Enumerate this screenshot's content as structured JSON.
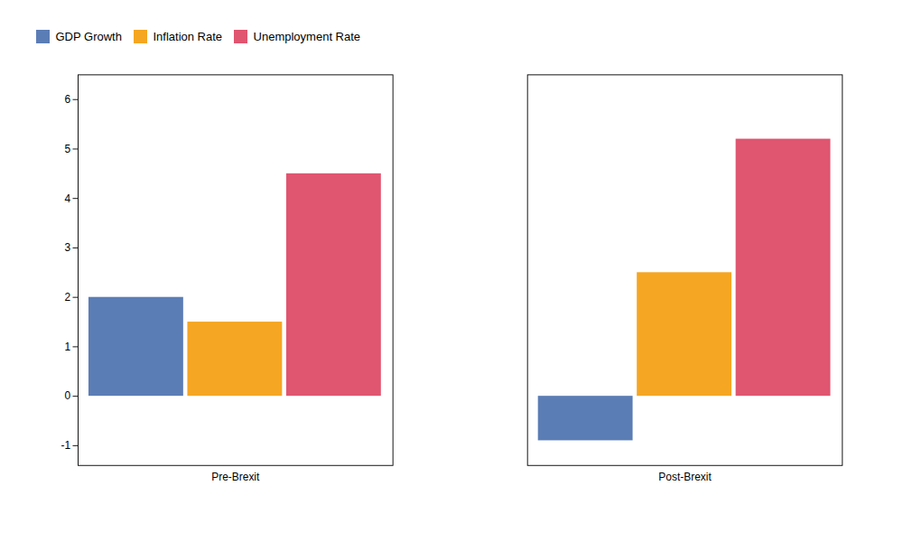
{
  "chart_data": {
    "type": "bar",
    "categories": [
      "Pre-Brexit",
      "Post-Brexit"
    ],
    "series": [
      {
        "name": "GDP Growth",
        "color": "#5B7DB5",
        "values": [
          2.0,
          -0.9
        ]
      },
      {
        "name": "Inflation Rate",
        "color": "#F5A623",
        "values": [
          1.5,
          2.5
        ]
      },
      {
        "name": "Unemployment Rate",
        "color": "#E05570",
        "values": [
          4.5,
          5.2
        ]
      }
    ],
    "ylim": [
      -1.4,
      6.5
    ],
    "yticks": [
      -1,
      0,
      1,
      2,
      3,
      4,
      5,
      6
    ],
    "grid": false,
    "legend": "upper left"
  }
}
